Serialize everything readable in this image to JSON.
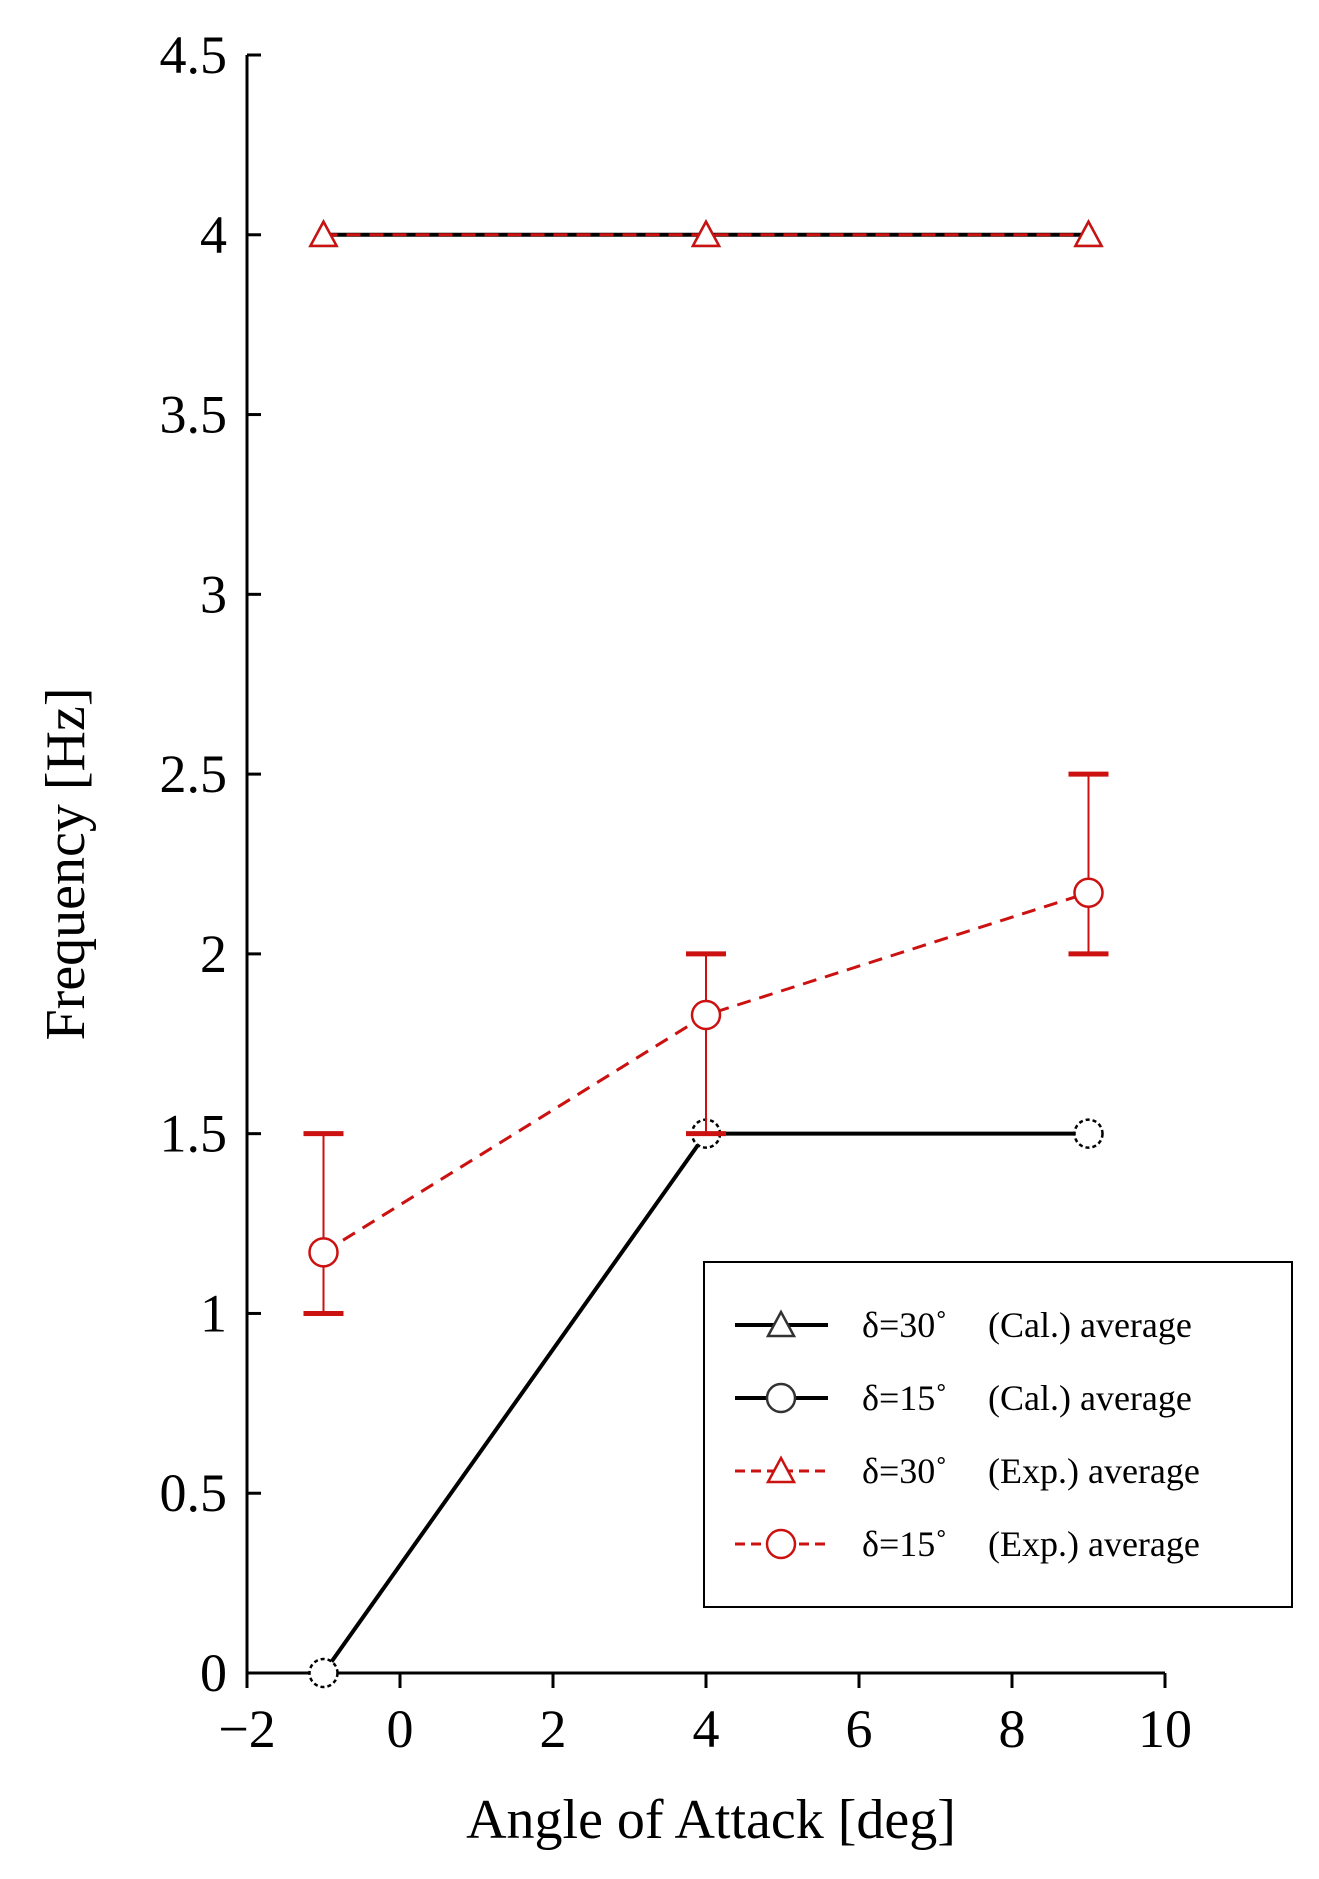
{
  "chart_data": {
    "type": "line",
    "title": "",
    "xlabel": "Angle of Attack [deg]",
    "ylabel": "Frequency [Hz]",
    "xlim": [
      -2,
      10
    ],
    "ylim": [
      0,
      4.5
    ],
    "x_ticks": [
      -2,
      0,
      2,
      4,
      6,
      8,
      10
    ],
    "x_tick_labels": [
      "−2",
      "0",
      "2",
      "4",
      "6",
      "8",
      "10"
    ],
    "y_ticks": [
      0,
      0.5,
      1,
      1.5,
      2,
      2.5,
      3,
      3.5,
      4,
      4.5
    ],
    "y_tick_labels": [
      "0",
      "0.5",
      "1",
      "1.5",
      "2",
      "2.5",
      "3",
      "3.5",
      "4",
      "4.5"
    ],
    "grid": false,
    "legend_position": "bottom-right",
    "series": [
      {
        "name": "δ=30˚ (Cal.) average",
        "legend_delta": "δ=30˚",
        "legend_desc": "(Cal.) average",
        "color": "#000000",
        "line_style": "solid",
        "marker": "triangle",
        "x": [
          -1,
          4,
          9
        ],
        "y": [
          4,
          4,
          4
        ]
      },
      {
        "name": "δ=15˚ (Cal.) average",
        "legend_delta": "δ=15˚",
        "legend_desc": "(Cal.) average",
        "color": "#000000",
        "line_style": "solid",
        "marker": "circle",
        "x": [
          -1,
          4,
          9
        ],
        "y": [
          0,
          1.5,
          1.5
        ]
      },
      {
        "name": "δ=30˚ (Exp.) average",
        "legend_delta": "δ=30˚",
        "legend_desc": "(Exp.) average",
        "color": "#cc1111",
        "line_style": "dashed",
        "marker": "triangle",
        "x": [
          -1,
          4,
          9
        ],
        "y": [
          4,
          4,
          4
        ]
      },
      {
        "name": "δ=15˚ (Exp.) average",
        "legend_delta": "δ=15˚",
        "legend_desc": "(Exp.) average",
        "color": "#cc1111",
        "line_style": "dashed",
        "marker": "circle",
        "x": [
          -1,
          4,
          9
        ],
        "y": [
          1.17,
          1.83,
          2.17
        ],
        "error_low": [
          1.0,
          1.5,
          2.0
        ],
        "error_high": [
          1.5,
          2.0,
          2.5
        ]
      }
    ]
  }
}
